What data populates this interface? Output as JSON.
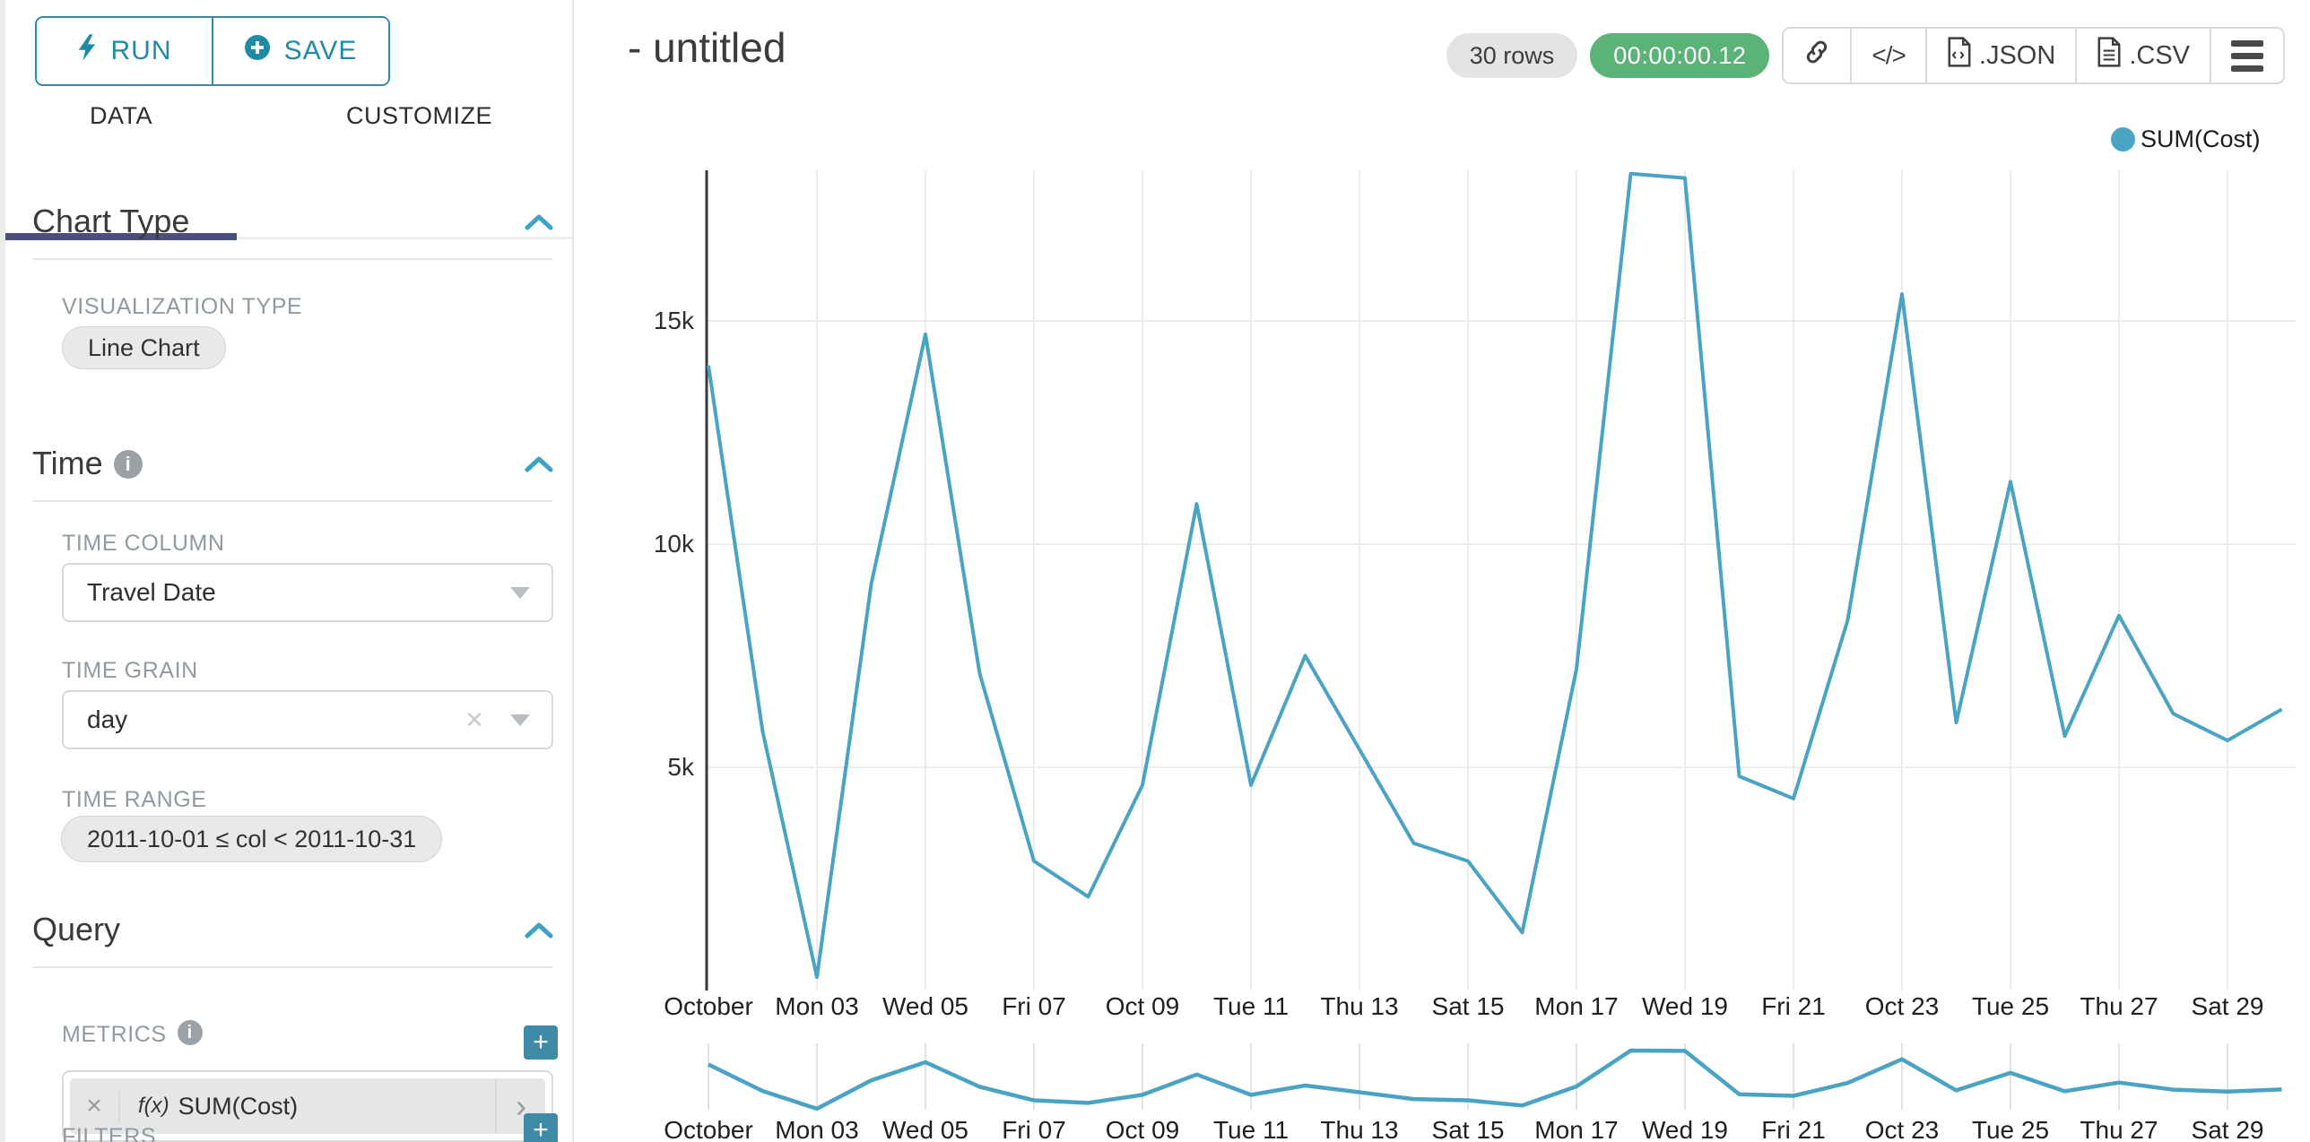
{
  "panel": {
    "run_label": "RUN",
    "save_label": "SAVE",
    "tabs": [
      "DATA",
      "CUSTOMIZE"
    ],
    "chart_type": {
      "title": "Chart Type",
      "viz_type_label": "VISUALIZATION TYPE",
      "viz_type_value": "Line Chart"
    },
    "time": {
      "title": "Time",
      "time_column_label": "TIME COLUMN",
      "time_column_value": "Travel Date",
      "time_grain_label": "TIME GRAIN",
      "time_grain_value": "day",
      "time_range_label": "TIME RANGE",
      "time_range_value": "2011-10-01 ≤ col < 2011-10-31"
    },
    "query": {
      "title": "Query",
      "metrics_label": "METRICS",
      "metric_prefix": "f(x)",
      "metric_value": "SUM(Cost)",
      "filters_label": "FILTERS"
    }
  },
  "header": {
    "title": "- untitled",
    "row_count": "30 rows",
    "timer": "00:00:00.12",
    "code_label": "</>",
    "export_json_label": ".JSON",
    "export_csv_label": ".CSV"
  },
  "legend": {
    "label": "SUM(Cost)"
  },
  "icons": {
    "clear_x": "×",
    "chevron_right": "›",
    "plus": "+",
    "info": "i"
  },
  "colors": {
    "accent_teal": "#1f8aa5",
    "line": "#4ba3c3",
    "tab_underline": "#4a4f7c",
    "timer_green": "#5cb377",
    "grid": "#ececec",
    "axis": "#3a3a3a"
  },
  "chart_data": {
    "type": "line",
    "title": "- untitled",
    "series": [
      {
        "name": "SUM(Cost)",
        "x": [
          "Oct 01",
          "Oct 02",
          "Oct 03",
          "Oct 04",
          "Oct 05",
          "Oct 06",
          "Oct 07",
          "Oct 08",
          "Oct 09",
          "Oct 10",
          "Oct 11",
          "Oct 12",
          "Oct 13",
          "Oct 14",
          "Oct 15",
          "Oct 16",
          "Oct 17",
          "Oct 18",
          "Oct 19",
          "Oct 20",
          "Oct 21",
          "Oct 22",
          "Oct 23",
          "Oct 24",
          "Oct 25",
          "Oct 26",
          "Oct 27",
          "Oct 28",
          "Oct 29",
          "Oct 30"
        ],
        "values": [
          14000,
          5800,
          300,
          9100,
          14700,
          7100,
          2900,
          2100,
          4600,
          10900,
          4600,
          7500,
          5400,
          3300,
          2900,
          1300,
          7200,
          18300,
          18200,
          4800,
          4300,
          8300,
          15600,
          6000,
          11400,
          5700,
          8400,
          6200,
          5600,
          6300
        ]
      }
    ],
    "x_tick_labels": [
      "October",
      "Mon 03",
      "Wed 05",
      "Fri 07",
      "Oct 09",
      "Tue 11",
      "Thu 13",
      "Sat 15",
      "Mon 17",
      "Wed 19",
      "Fri 21",
      "Oct 23",
      "Tue 25",
      "Thu 27",
      "Sat 29"
    ],
    "x_tick_every_n_points": 2,
    "y_ticks": [
      5000,
      10000,
      15000
    ],
    "y_tick_labels": [
      "5k",
      "10k",
      "15k"
    ],
    "ylim": [
      0,
      18500
    ],
    "grid": true,
    "legend_position": "top-right",
    "has_range_brush_chart": true
  }
}
